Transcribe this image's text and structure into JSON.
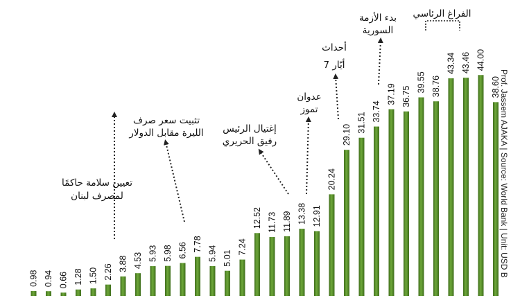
{
  "chart_data": {
    "type": "bar",
    "values": [
      0.98,
      0.94,
      0.66,
      1.28,
      1.5,
      2.26,
      3.88,
      4.53,
      5.93,
      5.98,
      6.56,
      7.78,
      5.94,
      5.01,
      7.24,
      12.52,
      11.73,
      11.89,
      13.38,
      12.91,
      20.24,
      29.1,
      31.51,
      33.74,
      37.19,
      36.75,
      39.55,
      38.76,
      43.34,
      43.46,
      44.0,
      38.6
    ],
    "value_labels": [
      "0.98",
      "0.94",
      "0.66",
      "1.28",
      "1.50",
      "2.26",
      "3.88",
      "4.53",
      "5.93",
      "5.98",
      "6.56",
      "7.78",
      "5.94",
      "5.01",
      "7.24",
      "12.52",
      "11.73",
      "11.89",
      "13.38",
      "12.91",
      "20.24",
      "29.10",
      "31.51",
      "33.74",
      "37.19",
      "36.75",
      "39.55",
      "38.76",
      "43.34",
      "43.46",
      "44.00",
      "38.60"
    ],
    "title": "",
    "xlabel": "",
    "ylabel": "",
    "ylim": [
      0,
      45
    ],
    "grid": false,
    "bar_color": "#5a8f2e",
    "annotations": [
      {
        "name": "annotation-central-bank-governor",
        "lines": [
          "تعيين سلامة حاكمًا",
          "لمصرف لبنان"
        ],
        "bar_index": 5
      },
      {
        "name": "annotation-peg",
        "lines": [
          "تثبيت سعر صرف",
          "الليرة مقابل الدولار"
        ],
        "bar_index": 10
      },
      {
        "name": "annotation-hariri",
        "lines": [
          "إغتيال الرئيس",
          "رفيق الحريري"
        ],
        "bar_index": 17
      },
      {
        "name": "annotation-july-war",
        "lines": [
          "عدوان",
          "تموز"
        ],
        "bar_index": 18
      },
      {
        "name": "annotation-may7",
        "lines": [
          "أحداث",
          "7 أيّار"
        ],
        "bar_index": 21
      },
      {
        "name": "annotation-syria-crisis",
        "lines": [
          "بدء الأزمة",
          "السورية"
        ],
        "bar_index": 24
      },
      {
        "name": "annotation-presidential-vacuum",
        "lines": [
          "الفراغ الرئاسي"
        ],
        "bar_range": [
          27,
          29
        ]
      }
    ]
  },
  "credit": "Prof. Jassem AJAKA | Source: World Bank | Unit: USD B"
}
